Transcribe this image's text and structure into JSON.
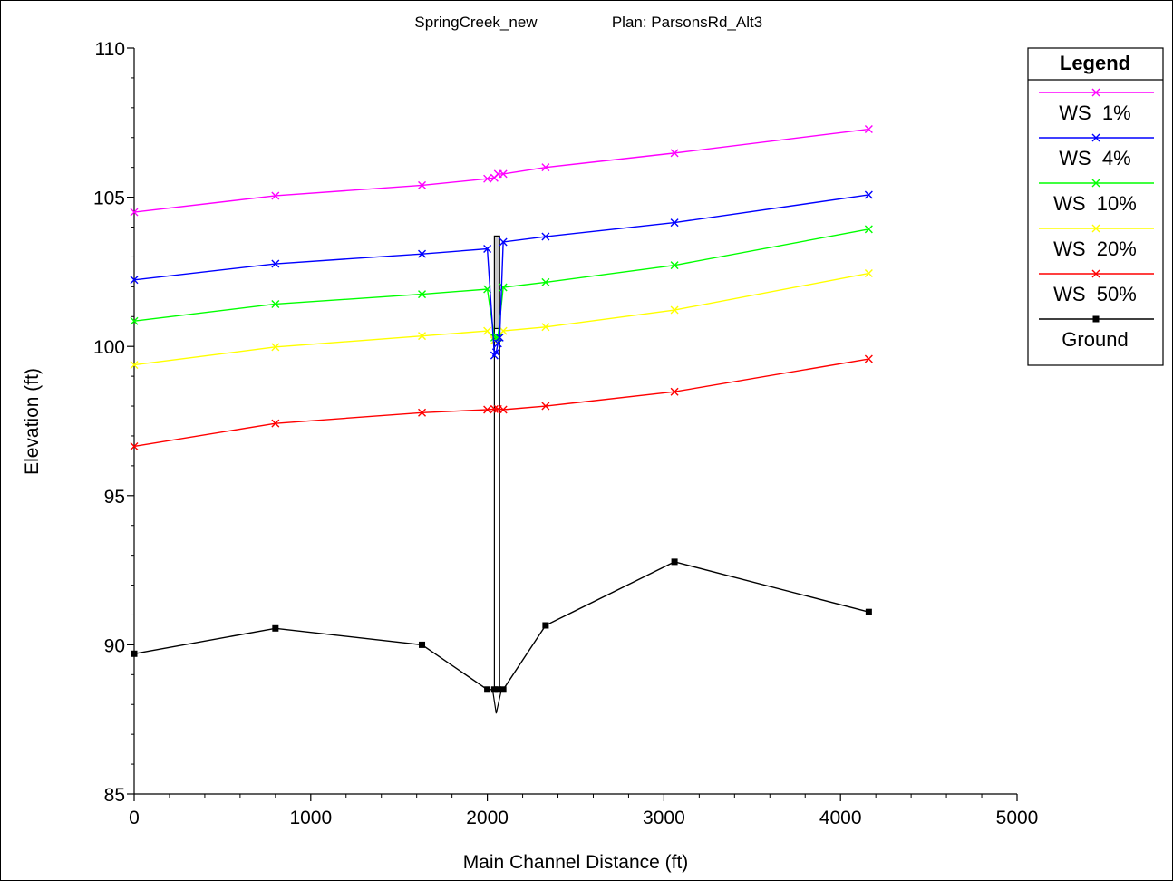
{
  "chart_data": {
    "type": "line",
    "title_left": "SpringCreek_new",
    "title_right": "Plan: ParsonsRd_Alt3",
    "xlabel": "Main Channel Distance (ft)",
    "ylabel": "Elevation (ft)",
    "xlim": [
      0,
      5000
    ],
    "ylim": [
      85,
      110
    ],
    "xticks": [
      0,
      1000,
      2000,
      3000,
      4000,
      5000
    ],
    "yticks": [
      85,
      90,
      95,
      100,
      105,
      110
    ],
    "legend": {
      "title": "Legend",
      "position": "top-right"
    },
    "series": [
      {
        "name": "WS  1%",
        "color": "#ff00ff",
        "marker": "x",
        "points": [
          [
            0,
            104.5
          ],
          [
            800,
            105.05
          ],
          [
            1630,
            105.4
          ],
          [
            2000,
            105.62
          ],
          [
            2040,
            105.65
          ],
          [
            2060,
            105.78
          ],
          [
            2090,
            105.78
          ],
          [
            2330,
            106.0
          ],
          [
            3060,
            106.48
          ],
          [
            4160,
            107.28
          ]
        ]
      },
      {
        "name": "WS  4%",
        "color": "#0000ff",
        "marker": "x",
        "points": [
          [
            0,
            102.23
          ],
          [
            800,
            102.77
          ],
          [
            1630,
            103.1
          ],
          [
            2000,
            103.27
          ],
          [
            2040,
            99.7
          ],
          [
            2050,
            99.8
          ],
          [
            2060,
            100.1
          ],
          [
            2070,
            100.3
          ],
          [
            2090,
            103.5
          ],
          [
            2330,
            103.68
          ],
          [
            3060,
            104.15
          ],
          [
            4160,
            105.08
          ]
        ]
      },
      {
        "name": "WS  10%",
        "color": "#00ff00",
        "marker": "x",
        "points": [
          [
            0,
            100.85
          ],
          [
            800,
            101.42
          ],
          [
            1630,
            101.75
          ],
          [
            2000,
            101.92
          ],
          [
            2040,
            100.3
          ],
          [
            2060,
            100.3
          ],
          [
            2090,
            101.98
          ],
          [
            2330,
            102.15
          ],
          [
            3060,
            102.72
          ],
          [
            4160,
            103.93
          ]
        ]
      },
      {
        "name": "WS  20%",
        "color": "#ffff00",
        "marker": "x",
        "points": [
          [
            0,
            99.38
          ],
          [
            800,
            99.98
          ],
          [
            1630,
            100.35
          ],
          [
            2000,
            100.52
          ],
          [
            2040,
            100.2
          ],
          [
            2060,
            100.3
          ],
          [
            2090,
            100.52
          ],
          [
            2330,
            100.65
          ],
          [
            3060,
            101.22
          ],
          [
            4160,
            102.45
          ]
        ]
      },
      {
        "name": "WS  50%",
        "color": "#ff0000",
        "marker": "x",
        "points": [
          [
            0,
            96.65
          ],
          [
            800,
            97.42
          ],
          [
            1630,
            97.78
          ],
          [
            2000,
            97.88
          ],
          [
            2040,
            97.9
          ],
          [
            2060,
            97.9
          ],
          [
            2090,
            97.88
          ],
          [
            2330,
            98.0
          ],
          [
            3060,
            98.48
          ],
          [
            4160,
            99.58
          ]
        ]
      },
      {
        "name": "Ground",
        "color": "#000000",
        "marker": "square",
        "points": [
          [
            0,
            89.7
          ],
          [
            800,
            90.55
          ],
          [
            1630,
            90.0
          ],
          [
            2000,
            88.5
          ],
          [
            2040,
            88.5
          ],
          [
            2060,
            88.5
          ],
          [
            2090,
            88.5
          ],
          [
            2330,
            90.65
          ],
          [
            3060,
            92.78
          ],
          [
            4160,
            91.1
          ]
        ]
      }
    ],
    "bridge": {
      "x_left": 2040,
      "x_right": 2070,
      "deck_top": 103.7,
      "deck_bottom": 100.6,
      "invert": 87.7
    }
  }
}
